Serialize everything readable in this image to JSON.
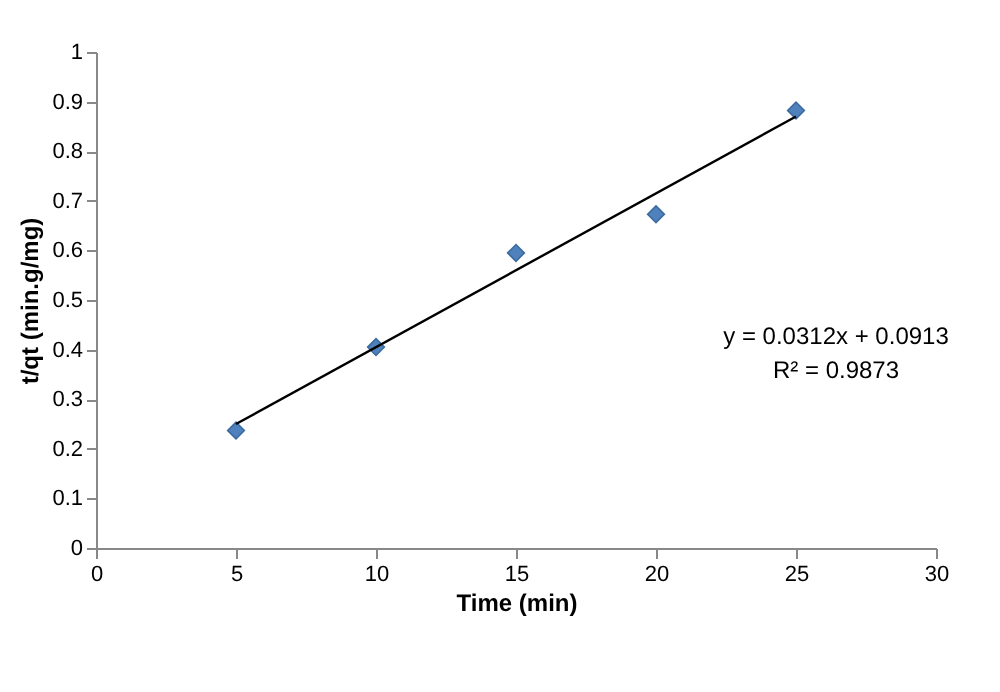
{
  "chart_data": {
    "type": "scatter",
    "xlabel": "Time (min)",
    "ylabel": "t/qt (min.g/mg)",
    "xlim": [
      0,
      30
    ],
    "xticks": [
      0,
      5,
      10,
      15,
      20,
      25,
      30
    ],
    "ylim": [
      0,
      1
    ],
    "yticks": [
      0,
      0.1,
      0.2,
      0.3,
      0.4,
      0.5,
      0.6,
      0.7,
      0.8,
      0.9,
      1
    ],
    "grid": false,
    "marker": "diamond",
    "series": [
      {
        "color": "#4f81bd",
        "x": [
          5,
          10,
          15,
          20,
          25
        ],
        "values": [
          0.237,
          0.405,
          0.595,
          0.673,
          0.882
        ]
      },
      {
        "type": "line",
        "color": "#000000",
        "x": [
          5,
          25
        ],
        "values": [
          0.25,
          0.87
        ],
        "line_style": "solid",
        "marker": "none"
      }
    ],
    "annotations": [
      "y = 0.0312x + 0.0913",
      "R² = 0.9873"
    ]
  }
}
